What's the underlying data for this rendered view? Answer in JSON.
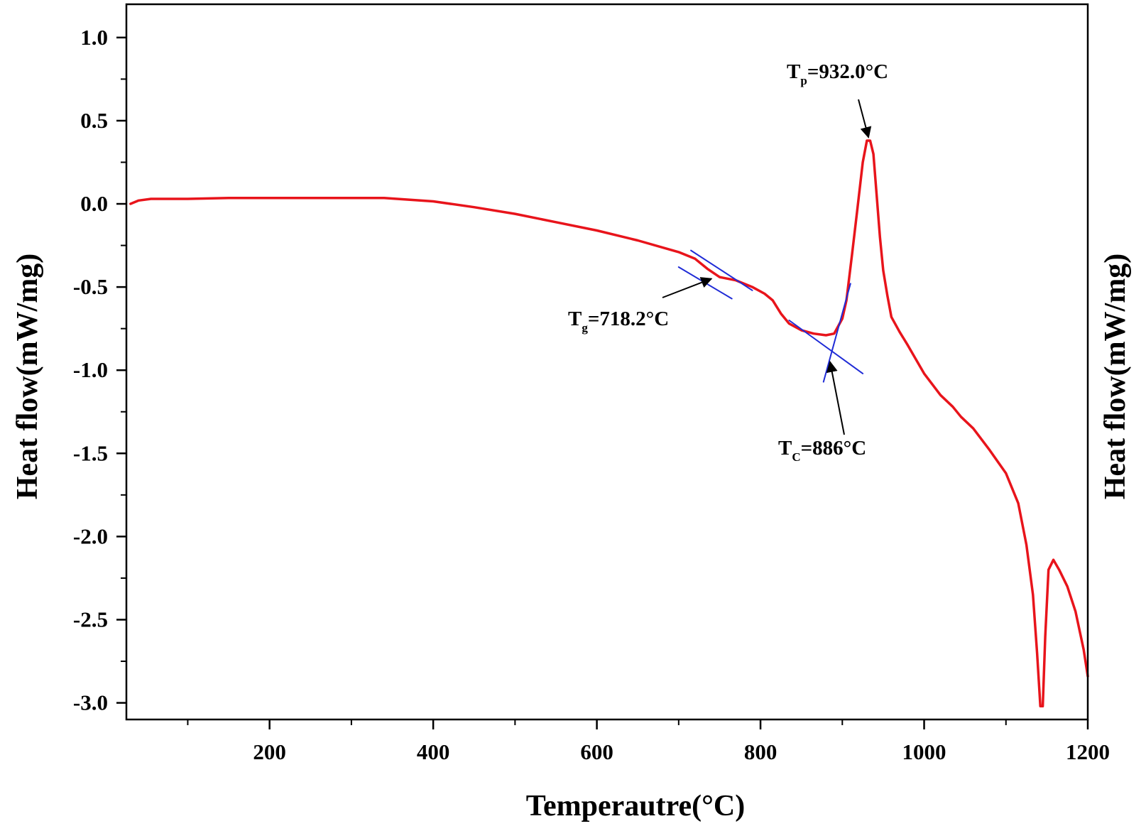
{
  "chart_data": {
    "type": "line",
    "xlabel": "Temperautre(°C)",
    "ylabel": "Heat flow(mW/mg)",
    "ylabel_right": "Heat flow(mW/mg)",
    "xlim": [
      25,
      1200
    ],
    "ylim": [
      -3.1,
      1.2
    ],
    "x_ticks": [
      200,
      400,
      600,
      800,
      1000,
      1200
    ],
    "x_tick_labels": [
      "200",
      "400",
      "600",
      "800",
      "1000",
      "1200"
    ],
    "x_minor_ticks": [
      100,
      300,
      500,
      700,
      900,
      1100
    ],
    "y_ticks": [
      1.0,
      0.5,
      0.0,
      -0.5,
      -1.0,
      -1.5,
      -2.0,
      -2.5,
      -3.0
    ],
    "y_tick_labels": [
      "1.0",
      "0.5",
      "0.0",
      "-0.5",
      "-1.0",
      "-1.5",
      "-2.0",
      "-2.5",
      "-3.0"
    ],
    "y_minor_ticks": [
      0.75,
      0.25,
      -0.25,
      -0.75,
      -1.25,
      -1.75,
      -2.25,
      -2.75
    ],
    "grid": false,
    "series": [
      {
        "color": "#e8141b",
        "x": [
          30,
          40,
          55,
          70,
          100,
          150,
          200,
          250,
          300,
          340,
          400,
          450,
          500,
          550,
          600,
          650,
          700,
          720,
          735,
          750,
          770,
          790,
          805,
          815,
          825,
          835,
          850,
          865,
          880,
          890,
          900,
          905,
          912,
          918,
          925,
          930,
          934,
          938,
          942,
          946,
          950,
          955,
          960,
          970,
          980,
          1000,
          1020,
          1035,
          1045,
          1060,
          1080,
          1100,
          1115,
          1125,
          1133,
          1138,
          1142,
          1145,
          1148,
          1152,
          1158,
          1165,
          1175,
          1185,
          1195,
          1200
        ],
        "y": [
          0.0,
          0.02,
          0.03,
          0.03,
          0.03,
          0.035,
          0.035,
          0.035,
          0.035,
          0.035,
          0.015,
          -0.02,
          -0.06,
          -0.11,
          -0.16,
          -0.22,
          -0.29,
          -0.33,
          -0.39,
          -0.44,
          -0.46,
          -0.5,
          -0.54,
          -0.58,
          -0.66,
          -0.72,
          -0.76,
          -0.78,
          -0.79,
          -0.78,
          -0.69,
          -0.58,
          -0.3,
          -0.05,
          0.25,
          0.38,
          0.38,
          0.3,
          0.05,
          -0.2,
          -0.4,
          -0.55,
          -0.68,
          -0.77,
          -0.85,
          -1.02,
          -1.15,
          -1.22,
          -1.28,
          -1.35,
          -1.48,
          -1.62,
          -1.8,
          -2.05,
          -2.35,
          -2.7,
          -3.02,
          -3.02,
          -2.6,
          -2.2,
          -2.14,
          -2.2,
          -2.3,
          -2.45,
          -2.68,
          -2.84
        ]
      },
      {
        "color": "#1f2bd6",
        "x": [
          700,
          765
        ],
        "y": [
          -0.38,
          -0.57
        ]
      },
      {
        "color": "#1f2bd6",
        "x": [
          715,
          790
        ],
        "y": [
          -0.28,
          -0.52
        ]
      },
      {
        "color": "#1f2bd6",
        "x": [
          835,
          925
        ],
        "y": [
          -0.7,
          -1.02
        ]
      },
      {
        "color": "#1f2bd6",
        "x": [
          877,
          910
        ],
        "y": [
          -1.07,
          -0.48
        ]
      }
    ],
    "annotations": [
      {
        "main": "T",
        "sub": "g",
        "value": "=718.2°C",
        "point": [
          740,
          -0.45
        ]
      },
      {
        "main": "T",
        "sub": "C",
        "value": "=886°C",
        "point": [
          885,
          -0.95
        ]
      },
      {
        "main": "T",
        "sub": "p",
        "value": "=932.0°C",
        "point": [
          932,
          0.4
        ]
      }
    ]
  }
}
